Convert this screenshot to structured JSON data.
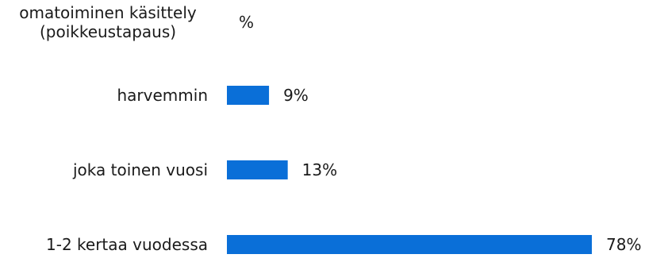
{
  "chart_data": {
    "type": "bar",
    "orientation": "horizontal",
    "title": "",
    "xlabel": "",
    "ylabel": "",
    "unit_label": "%",
    "xlim": [
      0,
      78
    ],
    "grid": false,
    "legend": "none",
    "bar_color": "#0a6fd8",
    "categories": [
      "omatoiminen käsittely (poikkeustapaus)",
      "harvemmin",
      "joka toinen vuosi",
      "1-2 kertaa vuodessa"
    ],
    "category_lines": [
      [
        "omatoiminen käsittely",
        "(poikkeustapaus)"
      ],
      [
        "harvemmin"
      ],
      [
        "joka toinen vuosi"
      ],
      [
        "1-2 kertaa vuodessa"
      ]
    ],
    "values": [
      0,
      9,
      13,
      78
    ],
    "value_labels": [
      "%",
      "9%",
      "13%",
      "78%"
    ]
  }
}
